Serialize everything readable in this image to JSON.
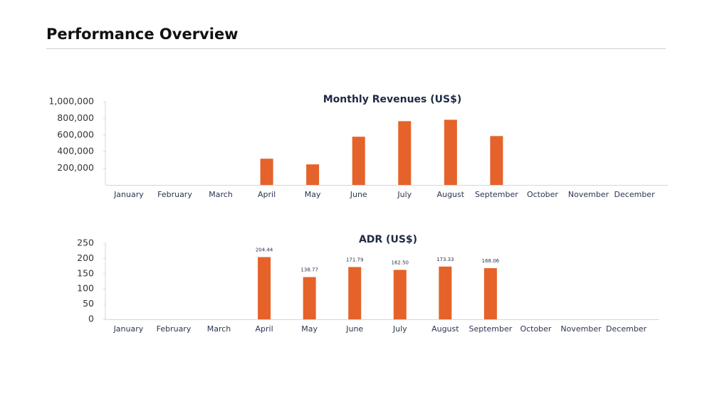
{
  "header": {
    "title": "Performance Overview"
  },
  "chart_data": [
    {
      "type": "bar",
      "title": "Monthly Revenues (US$)",
      "categories": [
        "January",
        "February",
        "March",
        "April",
        "May",
        "June",
        "July",
        "August",
        "September",
        "October",
        "November",
        "December"
      ],
      "values": [
        null,
        null,
        null,
        315000,
        247000,
        579000,
        766000,
        783000,
        587000,
        null,
        null,
        null
      ],
      "color": "#e5622a",
      "ylim": [
        0,
        1000000
      ],
      "yticks": [
        {
          "value": 200000,
          "label": "200,000"
        },
        {
          "value": 400000,
          "label": "400,000"
        },
        {
          "value": 600000,
          "label": "600,000"
        },
        {
          "value": 800000,
          "label": "800,000"
        },
        {
          "value": 1000000,
          "label": "1,000,000"
        }
      ],
      "grid": false
    },
    {
      "type": "bar",
      "title": "ADR (US$)",
      "categories": [
        "January",
        "February",
        "March",
        "April",
        "May",
        "June",
        "July",
        "August",
        "September",
        "October",
        "November",
        "December"
      ],
      "values": [
        null,
        null,
        null,
        204.44,
        138.77,
        171.79,
        162.5,
        173.33,
        168.06,
        null,
        null,
        null
      ],
      "value_labels": [
        null,
        null,
        null,
        "204.44",
        "138.77",
        "171.79",
        "162.50",
        "173.33",
        "168.06",
        null,
        null,
        null
      ],
      "color": "#e5622a",
      "ylim": [
        0,
        250
      ],
      "yticks": [
        0,
        50,
        100,
        150,
        200,
        250
      ],
      "grid": false
    }
  ]
}
